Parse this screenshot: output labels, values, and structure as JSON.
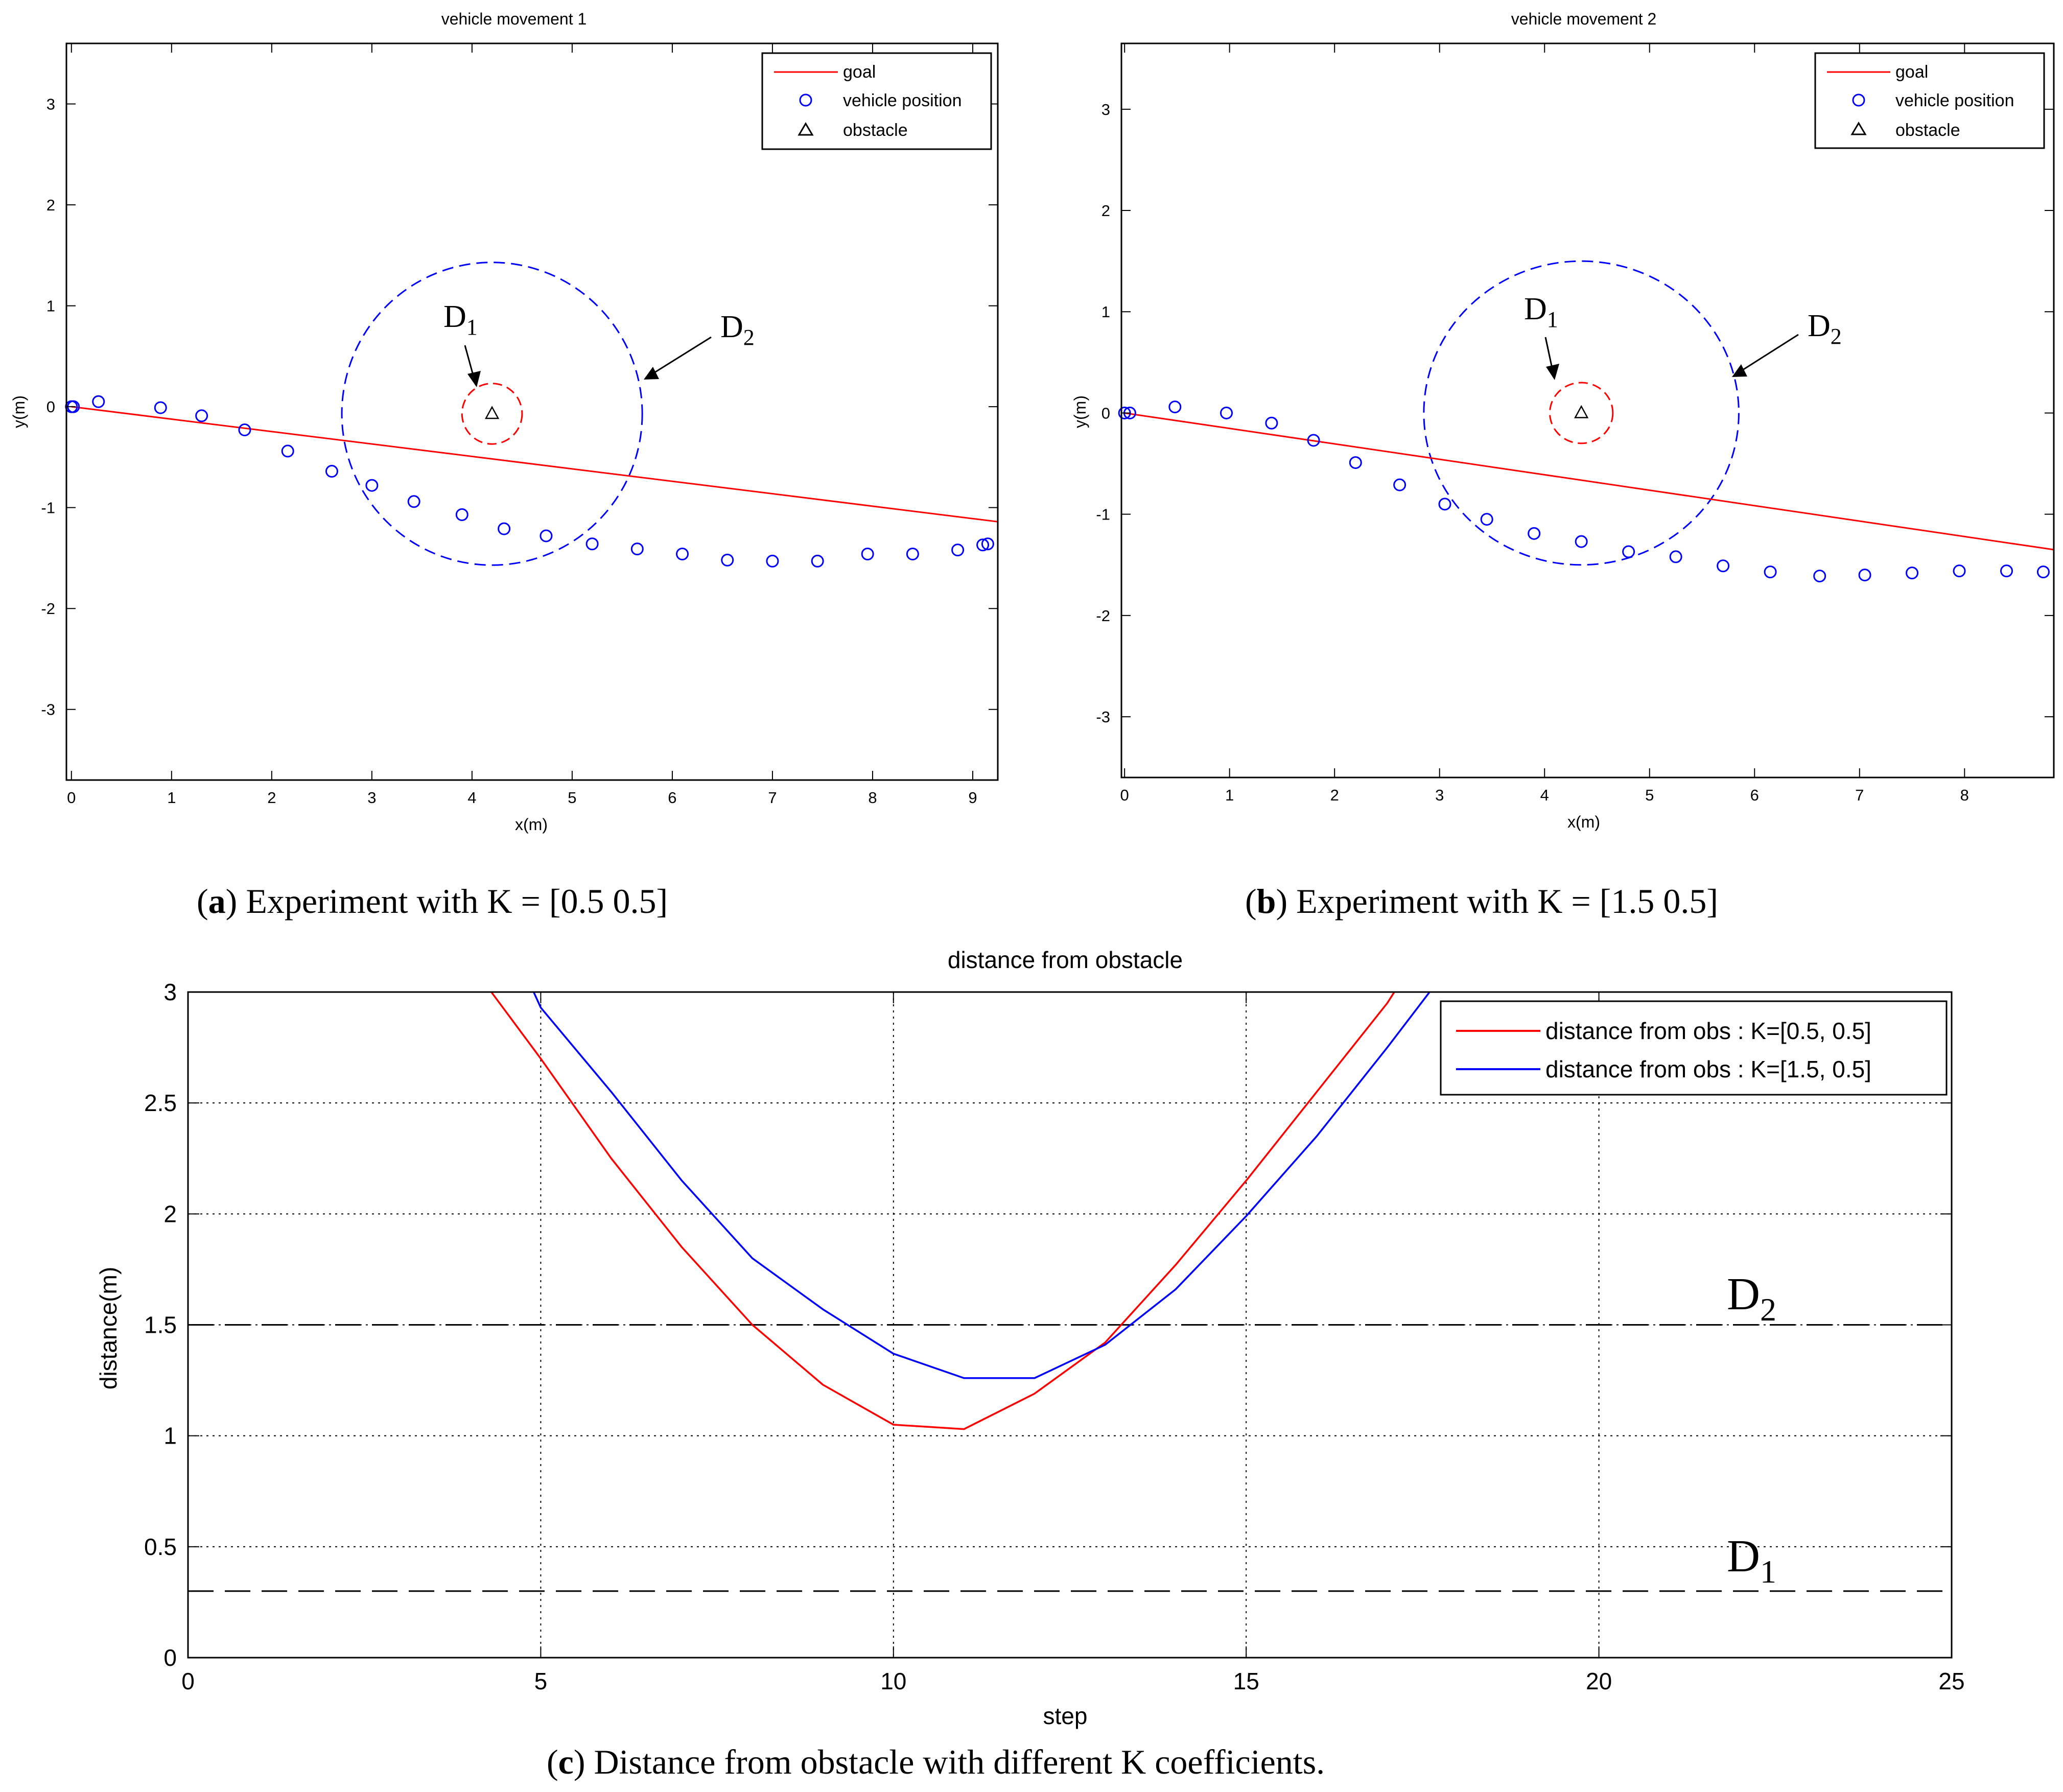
{
  "colors": {
    "goal": "#ff0000",
    "vehicle": "#0000ff",
    "obstacle": "#000000",
    "d1_ring": "#ff0000",
    "d2_ring": "#0000ff",
    "k1_series": "#ff0000",
    "k2_series": "#0000ff",
    "threshold": "#000000"
  },
  "captions": {
    "a": {
      "letter": "a",
      "text": "Experiment with  K = [0.5    0.5]"
    },
    "b": {
      "letter": "b",
      "text": "Experiment with  K = [1.5    0.5]"
    },
    "c": {
      "letter": "c",
      "text": "Distance from obstacle with different K coefficients."
    }
  },
  "chart_data": [
    {
      "id": "a",
      "type": "scatter",
      "title": "vehicle movement 1",
      "xlabel": "x(m)",
      "ylabel": "y(m)",
      "xlim": [
        -0.05,
        9.25
      ],
      "ylim": [
        -3.7,
        3.6
      ],
      "xticks": [
        0,
        1,
        2,
        3,
        4,
        5,
        6,
        7,
        8,
        9
      ],
      "yticks": [
        -3,
        -2,
        -1,
        0,
        1,
        2,
        3
      ],
      "grid": false,
      "legend": {
        "position": "top-right",
        "entries": [
          {
            "label": "goal",
            "kind": "line"
          },
          {
            "label": "vehicle position",
            "kind": "circle"
          },
          {
            "label": "obstacle",
            "kind": "triangle"
          }
        ]
      },
      "goal_line": {
        "x": [
          0,
          9.25
        ],
        "y": [
          0,
          -1.14
        ]
      },
      "obstacle": {
        "x": 4.2,
        "y": -0.07
      },
      "radius_d1": 0.3,
      "radius_d2": 1.5,
      "vehicle_positions": {
        "x": [
          0,
          0.02,
          0.27,
          0.89,
          1.3,
          1.73,
          2.16,
          2.6,
          3.0,
          3.42,
          3.9,
          4.32,
          4.74,
          5.2,
          5.65,
          6.1,
          6.55,
          7.0,
          7.45,
          7.95,
          8.4,
          8.85,
          9.1,
          9.15
        ],
        "y": [
          0,
          0,
          0.05,
          -0.01,
          -0.09,
          -0.23,
          -0.44,
          -0.64,
          -0.78,
          -0.94,
          -1.07,
          -1.21,
          -1.28,
          -1.36,
          -1.41,
          -1.46,
          -1.52,
          -1.53,
          -1.53,
          -1.46,
          -1.46,
          -1.42,
          -1.37,
          -1.36
        ]
      },
      "annotations": [
        {
          "base": "D",
          "sub": "1"
        },
        {
          "base": "D",
          "sub": "2"
        }
      ]
    },
    {
      "id": "b",
      "type": "scatter",
      "title": "vehicle movement 2",
      "xlabel": "x(m)",
      "ylabel": "y(m)",
      "xlim": [
        -0.03,
        8.85
      ],
      "ylim": [
        -3.6,
        3.65
      ],
      "xticks": [
        0,
        1,
        2,
        3,
        4,
        5,
        6,
        7,
        8
      ],
      "yticks": [
        -3,
        -2,
        -1,
        0,
        1,
        2,
        3
      ],
      "grid": false,
      "legend": {
        "position": "top-right",
        "entries": [
          {
            "label": "goal",
            "kind": "line"
          },
          {
            "label": "vehicle position",
            "kind": "circle"
          },
          {
            "label": "obstacle",
            "kind": "triangle"
          }
        ]
      },
      "goal_line": {
        "x": [
          0,
          8.85
        ],
        "y": [
          0,
          -1.35
        ]
      },
      "obstacle": {
        "x": 4.35,
        "y": 0
      },
      "radius_d1": 0.3,
      "radius_d2": 1.5,
      "vehicle_positions": {
        "x": [
          0,
          0.05,
          0.48,
          0.97,
          1.4,
          1.8,
          2.2,
          2.62,
          3.05,
          3.45,
          3.9,
          4.35,
          4.8,
          5.25,
          5.7,
          6.15,
          6.62,
          7.05,
          7.5,
          7.95,
          8.4,
          8.75
        ],
        "y": [
          0,
          0,
          0.06,
          0,
          -0.1,
          -0.27,
          -0.49,
          -0.71,
          -0.9,
          -1.05,
          -1.19,
          -1.27,
          -1.37,
          -1.42,
          -1.51,
          -1.57,
          -1.61,
          -1.6,
          -1.58,
          -1.56,
          -1.56,
          -1.57
        ]
      },
      "annotations": [
        {
          "base": "D",
          "sub": "1"
        },
        {
          "base": "D",
          "sub": "2"
        }
      ]
    },
    {
      "id": "c",
      "type": "line",
      "title": "distance from obstacle",
      "xlabel": "step",
      "ylabel": "distance(m)",
      "xlim": [
        0,
        25
      ],
      "ylim": [
        0,
        3
      ],
      "xticks": [
        0,
        5,
        10,
        15,
        20,
        25
      ],
      "yticks": [
        0,
        0.5,
        1,
        1.5,
        2,
        2.5,
        3
      ],
      "xtick_labels": [
        "0",
        "5",
        "10",
        "15",
        "20",
        "25"
      ],
      "ytick_labels": [
        "0",
        "0.5",
        "1",
        "1.5",
        "2",
        "2.5",
        "3"
      ],
      "grid": true,
      "legend": {
        "position": "top-right"
      },
      "series": [
        {
          "name": "distance from obs : K=[0.5, 0.5]",
          "color": "#ff0000",
          "x": [
            4.3,
            5,
            6,
            7,
            8,
            9,
            10,
            10.5,
            11,
            12,
            13,
            14,
            15,
            16,
            17,
            17.1
          ],
          "y": [
            3.0,
            2.7,
            2.25,
            1.85,
            1.5,
            1.23,
            1.05,
            1.04,
            1.03,
            1.19,
            1.42,
            1.77,
            2.15,
            2.55,
            2.95,
            3.0
          ]
        },
        {
          "name": "distance from obs : K=[1.5, 0.5]",
          "color": "#0000ff",
          "x": [
            4.9,
            5,
            6,
            7,
            8,
            9,
            10,
            11,
            12,
            13,
            14,
            15,
            16,
            17,
            17.6
          ],
          "y": [
            3.0,
            2.93,
            2.55,
            2.15,
            1.8,
            1.57,
            1.37,
            1.26,
            1.26,
            1.41,
            1.66,
            1.99,
            2.35,
            2.75,
            3.0
          ]
        }
      ],
      "thresholds": [
        {
          "value": 1.5,
          "label": {
            "base": "D",
            "sub": "2"
          }
        },
        {
          "value": 0.3,
          "label": {
            "base": "D",
            "sub": "1"
          }
        }
      ]
    }
  ]
}
